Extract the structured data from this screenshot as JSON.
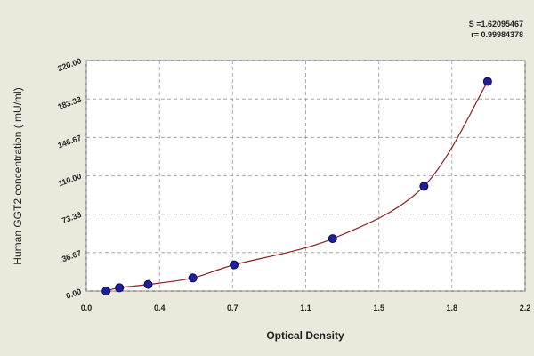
{
  "chart_data": {
    "type": "scatter",
    "xlabel": "Optical Density",
    "ylabel": "Human GGT2 concentration ( mU/ml)",
    "annotations": [
      "S =1.62095467",
      "r= 0.99984378"
    ],
    "series": [
      {
        "color": "#1f1f9c",
        "line_color": "#8b2020",
        "x": [
          0.099,
          0.166,
          0.31,
          0.534,
          0.741,
          1.235,
          1.693,
          2.012
        ],
        "values": [
          0,
          3.13,
          6.25,
          12.5,
          25,
          50,
          100,
          200
        ]
      }
    ],
    "xlim": [
      0,
      2.2
    ],
    "xticks": [
      {
        "value": 0,
        "label": "0.0"
      },
      {
        "value": 0.367,
        "label": "0.4"
      },
      {
        "value": 0.733,
        "label": "0.7"
      },
      1.1,
      {
        "value": 1.467,
        "label": "1.5"
      },
      {
        "value": 1.833,
        "label": "1.8"
      },
      2.2
    ],
    "ylim": [
      0,
      220
    ],
    "yticks": [
      {
        "value": 0,
        "label": "0.00"
      },
      {
        "value": 36.67,
        "label": "36.67"
      },
      {
        "value": 73.33,
        "label": "73.33"
      },
      {
        "value": 110,
        "label": "110.00"
      },
      {
        "value": 146.67,
        "label": "146.67"
      },
      {
        "value": 183.33,
        "label": "183.33"
      },
      {
        "value": 220,
        "label": "220.00"
      }
    ],
    "grid": true
  }
}
